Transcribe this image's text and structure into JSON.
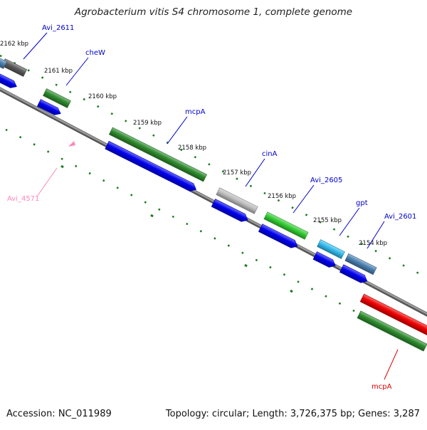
{
  "title": "Agrobacterium vitis S4 chromosome 1, complete genome",
  "footer": {
    "accession": "Accession: NC_011989",
    "summary": "Topology: circular; Length: 3,726,375 bp; Genes: 3,287"
  },
  "colors": {
    "backbone": "#7f7f7f",
    "tick": "#1e7a1e",
    "cds_plus": "#0000ee",
    "gene_dark_green": "#2e8b2e",
    "gene_green": "#33cc33",
    "gene_gray": "#bdbdbd",
    "gene_dark_gray": "#5a5a5a",
    "gene_cyan": "#33bbee",
    "gene_steel": "#4a7fb0",
    "gene_red": "#ee0000",
    "label_blue": "#0000cc",
    "label_pink": "#ff88bb",
    "label_red": "#dd0000"
  },
  "kbp_labels": [
    "2162 kbp",
    "2161 kbp",
    "2160 kbp",
    "2159 kbp",
    "2158 kbp",
    "2157 kbp",
    "2156 kbp",
    "2155 kbp",
    "2154 kbp"
  ],
  "gene_labels": [
    {
      "text": "Avi_2611",
      "color": "label_blue"
    },
    {
      "text": "cheW",
      "color": "label_blue"
    },
    {
      "text": "mcpA",
      "color": "label_blue"
    },
    {
      "text": "cinA",
      "color": "label_blue"
    },
    {
      "text": "Avi_2605",
      "color": "label_blue"
    },
    {
      "text": "gpt",
      "color": "label_blue"
    },
    {
      "text": "Avi_2601",
      "color": "label_blue"
    },
    {
      "text": "Avi_4571",
      "color": "label_pink"
    },
    {
      "text": "mcpA",
      "color": "label_red"
    }
  ]
}
